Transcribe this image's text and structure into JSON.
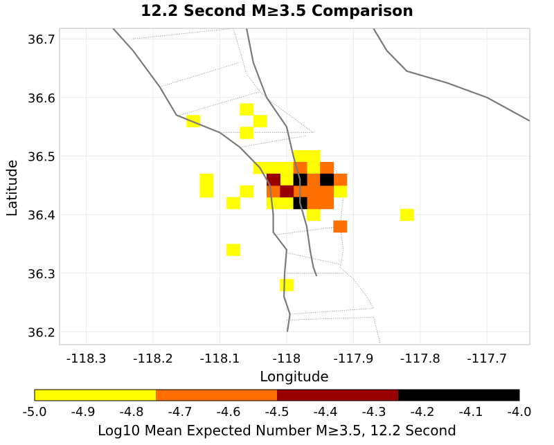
{
  "chart_data": {
    "type": "heatmap",
    "title": "12.2 Second M≥3.5 Comparison",
    "xlabel": "Longitude",
    "ylabel": "Latitude",
    "xlim": [
      -118.34,
      -117.636
    ],
    "ylim": [
      36.178,
      36.718
    ],
    "x_ticks": [
      -118.3,
      -118.2,
      -118.1,
      -118.0,
      -117.9,
      -117.8,
      -117.7
    ],
    "x_tick_labels": [
      "-118.3",
      "-118.2",
      "-118.1",
      "-118",
      "-117.9",
      "-117.8",
      "-117.7"
    ],
    "y_ticks": [
      36.2,
      36.3,
      36.4,
      36.5,
      36.6,
      36.7
    ],
    "y_tick_labels": [
      "36.2",
      "36.3",
      "36.4",
      "36.5",
      "36.6",
      "36.7"
    ],
    "grid": true,
    "cell_size_deg": 0.02,
    "colorbar": {
      "label": "Log10 Mean Expected Number M≥3.5, 12.2 Second",
      "range": [
        -5.0,
        -4.0
      ],
      "ticks": [
        "-5.0",
        "-4.9",
        "-4.8",
        "-4.7",
        "-4.6",
        "-4.5",
        "-4.4",
        "-4.3",
        "-4.2",
        "-4.1",
        "-4.0"
      ],
      "bins": [
        {
          "from": -5.0,
          "to": -4.75,
          "color": "#ffff00"
        },
        {
          "from": -4.75,
          "to": -4.5,
          "color": "#ff7000"
        },
        {
          "from": -4.5,
          "to": -4.25,
          "color": "#990000"
        },
        {
          "from": -4.25,
          "to": -4.0,
          "color": "#000000"
        }
      ]
    },
    "cells": [
      {
        "lon": -118.14,
        "lat": 36.56,
        "value": -4.9
      },
      {
        "lon": -118.06,
        "lat": 36.58,
        "value": -4.9
      },
      {
        "lon": -118.04,
        "lat": 36.56,
        "value": -4.9
      },
      {
        "lon": -118.06,
        "lat": 36.54,
        "value": -4.9
      },
      {
        "lon": -118.12,
        "lat": 36.46,
        "value": -4.9
      },
      {
        "lon": -118.12,
        "lat": 36.44,
        "value": -4.9
      },
      {
        "lon": -118.08,
        "lat": 36.42,
        "value": -4.9
      },
      {
        "lon": -118.06,
        "lat": 36.44,
        "value": -4.9
      },
      {
        "lon": -118.08,
        "lat": 36.34,
        "value": -4.9
      },
      {
        "lon": -118.0,
        "lat": 36.28,
        "value": -4.9
      },
      {
        "lon": -117.82,
        "lat": 36.4,
        "value": -4.9
      },
      {
        "lon": -117.98,
        "lat": 36.5,
        "value": -4.9
      },
      {
        "lon": -117.96,
        "lat": 36.5,
        "value": -4.9
      },
      {
        "lon": -118.04,
        "lat": 36.48,
        "value": -4.9
      },
      {
        "lon": -118.02,
        "lat": 36.48,
        "value": -4.9
      },
      {
        "lon": -118.0,
        "lat": 36.48,
        "value": -4.9
      },
      {
        "lon": -117.96,
        "lat": 36.48,
        "value": -4.9
      },
      {
        "lon": -118.0,
        "lat": 36.46,
        "value": -4.9
      },
      {
        "lon": -118.0,
        "lat": 36.44,
        "value": -4.9
      },
      {
        "lon": -117.92,
        "lat": 36.44,
        "value": -4.9
      },
      {
        "lon": -118.02,
        "lat": 36.42,
        "value": -4.9
      },
      {
        "lon": -118.0,
        "lat": 36.42,
        "value": -4.9
      },
      {
        "lon": -117.96,
        "lat": 36.4,
        "value": -4.9
      },
      {
        "lon": -117.98,
        "lat": 36.48,
        "value": -4.6
      },
      {
        "lon": -117.94,
        "lat": 36.48,
        "value": -4.6
      },
      {
        "lon": -117.96,
        "lat": 36.46,
        "value": -4.6
      },
      {
        "lon": -117.92,
        "lat": 36.46,
        "value": -4.6
      },
      {
        "lon": -118.02,
        "lat": 36.44,
        "value": -4.6
      },
      {
        "lon": -117.98,
        "lat": 36.44,
        "value": -4.6
      },
      {
        "lon": -117.96,
        "lat": 36.44,
        "value": -4.6
      },
      {
        "lon": -117.94,
        "lat": 36.44,
        "value": -4.6
      },
      {
        "lon": -117.98,
        "lat": 36.42,
        "value": -4.6
      },
      {
        "lon": -117.96,
        "lat": 36.42,
        "value": -4.6
      },
      {
        "lon": -117.94,
        "lat": 36.42,
        "value": -4.6
      },
      {
        "lon": -117.92,
        "lat": 36.38,
        "value": -4.6
      },
      {
        "lon": -118.02,
        "lat": 36.46,
        "value": -4.4
      },
      {
        "lon": -118.0,
        "lat": 36.44,
        "value": -4.4
      },
      {
        "lon": -117.98,
        "lat": 36.46,
        "value": -4.1
      },
      {
        "lon": -117.94,
        "lat": 36.46,
        "value": -4.1
      },
      {
        "lon": -117.98,
        "lat": 36.42,
        "value": -4.1
      }
    ],
    "fault_lines": [
      [
        [
          -118.26,
          36.718
        ],
        [
          -118.23,
          36.68
        ],
        [
          -118.19,
          36.618
        ],
        [
          -118.165,
          36.57
        ],
        [
          -118.1,
          36.54
        ],
        [
          -118.07,
          36.515
        ],
        [
          -118.04,
          36.48
        ],
        [
          -118.025,
          36.45
        ],
        [
          -118.02,
          36.4
        ],
        [
          -118.02,
          36.37
        ],
        [
          -118.0,
          36.34
        ],
        [
          -118.003,
          36.3
        ],
        [
          -118.004,
          36.26
        ],
        [
          -117.995,
          36.23
        ],
        [
          -117.999,
          36.2
        ]
      ],
      [
        [
          -118.06,
          36.718
        ],
        [
          -118.05,
          36.66
        ],
        [
          -118.03,
          36.6
        ],
        [
          -118.0,
          36.55
        ],
        [
          -117.99,
          36.5
        ],
        [
          -117.98,
          36.46
        ],
        [
          -117.98,
          36.42
        ],
        [
          -117.97,
          36.38
        ],
        [
          -117.965,
          36.34
        ],
        [
          -117.96,
          36.31
        ],
        [
          -117.955,
          36.295
        ]
      ],
      [
        [
          -117.87,
          36.718
        ],
        [
          -117.85,
          36.68
        ],
        [
          -117.82,
          36.645
        ],
        [
          -117.76,
          36.625
        ],
        [
          -117.7,
          36.6
        ],
        [
          -117.636,
          36.56
        ]
      ]
    ],
    "subfault_lines": [
      [
        [
          -118.08,
          36.718
        ],
        [
          -118.07,
          36.68
        ],
        [
          -118.06,
          36.64
        ],
        [
          -118.04,
          36.61
        ],
        [
          -118.02,
          36.59
        ],
        [
          -117.99,
          36.565
        ],
        [
          -117.96,
          36.54
        ]
      ],
      [
        [
          -118.23,
          36.7
        ],
        [
          -118.08,
          36.718
        ]
      ],
      [
        [
          -118.19,
          36.618
        ],
        [
          -118.07,
          36.66
        ]
      ],
      [
        [
          -118.16,
          36.57
        ],
        [
          -118.04,
          36.61
        ]
      ],
      [
        [
          -118.1,
          36.54
        ],
        [
          -117.96,
          36.54
        ]
      ],
      [
        [
          -118.07,
          36.515
        ],
        [
          -117.97,
          36.535
        ]
      ],
      [
        [
          -117.93,
          36.485
        ],
        [
          -117.92,
          36.46
        ],
        [
          -117.915,
          36.43
        ],
        [
          -117.92,
          36.38
        ],
        [
          -117.915,
          36.34
        ],
        [
          -117.92,
          36.31
        ],
        [
          -117.9,
          36.29
        ],
        [
          -117.88,
          36.26
        ],
        [
          -117.87,
          36.24
        ]
      ],
      [
        [
          -118.02,
          36.365
        ],
        [
          -117.92,
          36.38
        ]
      ],
      [
        [
          -118.0,
          36.335
        ],
        [
          -117.92,
          36.315
        ]
      ],
      [
        [
          -118.0,
          36.3
        ],
        [
          -117.915,
          36.3
        ]
      ],
      [
        [
          -117.995,
          36.23
        ],
        [
          -117.87,
          36.24
        ]
      ],
      [
        [
          -118.0,
          36.22
        ],
        [
          -117.87,
          36.225
        ],
        [
          -117.86,
          36.18
        ]
      ]
    ]
  }
}
